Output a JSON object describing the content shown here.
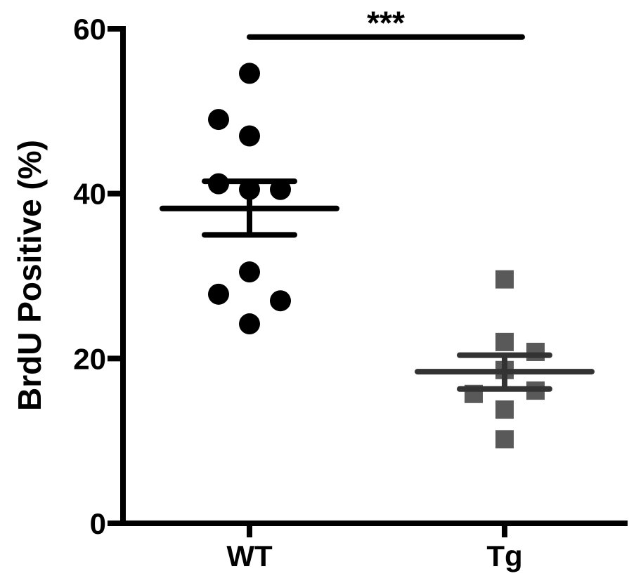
{
  "chart_data": {
    "type": "scatter",
    "ylabel": "BrdU Positive (%)",
    "ylim": [
      0,
      60
    ],
    "yticks": [
      0,
      20,
      40,
      60
    ],
    "ytick_labels": [
      "0",
      "20",
      "40",
      "60"
    ],
    "grid": false,
    "categories": [
      "WT",
      "Tg"
    ],
    "groups": [
      {
        "category": "WT",
        "marker": "circle",
        "color": "#000000",
        "points": [
          {
            "offset": 0,
            "y": 54.6
          },
          {
            "offset": -1,
            "y": 49.0
          },
          {
            "offset": 0,
            "y": 47.0
          },
          {
            "offset": -1,
            "y": 41.2
          },
          {
            "offset": 0,
            "y": 40.5
          },
          {
            "offset": 1,
            "y": 40.5
          },
          {
            "offset": 0,
            "y": 30.5
          },
          {
            "offset": -1,
            "y": 27.8
          },
          {
            "offset": 1,
            "y": 27.0
          },
          {
            "offset": 0,
            "y": 24.2
          }
        ],
        "mean": 38.2,
        "error_upper": 41.5,
        "error_lower": 35.0
      },
      {
        "category": "Tg",
        "marker": "square",
        "color": "#595959",
        "points": [
          {
            "offset": 0,
            "y": 29.6
          },
          {
            "offset": 0,
            "y": 22.0
          },
          {
            "offset": 1,
            "y": 20.8
          },
          {
            "offset": 0,
            "y": 18.6
          },
          {
            "offset": 1,
            "y": 16.1
          },
          {
            "offset": -1,
            "y": 15.7
          },
          {
            "offset": 0,
            "y": 13.8
          },
          {
            "offset": 0,
            "y": 10.2
          }
        ],
        "mean": 18.4,
        "error_upper": 20.4,
        "error_lower": 16.3
      }
    ],
    "significance": {
      "label": "***",
      "from": "WT",
      "to": "Tg",
      "y": 59.0
    }
  }
}
